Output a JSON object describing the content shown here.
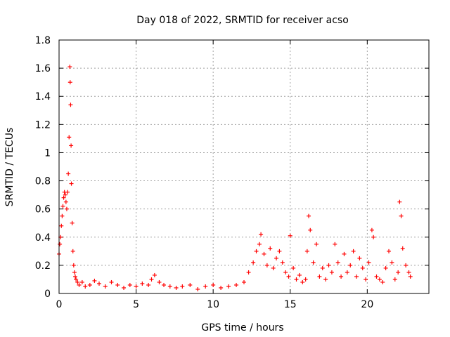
{
  "chart_data": {
    "type": "scatter",
    "title": "Day 018 of 2022, SRMTID for receiver acso",
    "xlabel": "GPS time / hours",
    "ylabel": "SRMTID / TECUs",
    "xlim": [
      0,
      24
    ],
    "ylim": [
      0,
      1.8
    ],
    "grid": true,
    "x_ticks": [
      0,
      5,
      10,
      15,
      20
    ],
    "x_tick_labels": [
      "0",
      "5",
      "10",
      "15",
      "20"
    ],
    "y_ticks": [
      0,
      0.2,
      0.4,
      0.6,
      0.8,
      1.0,
      1.2,
      1.4,
      1.6,
      1.8
    ],
    "y_tick_labels": [
      "0",
      "0.2",
      "0.4",
      "0.6",
      "0.8",
      "1",
      "1.2",
      "1.4",
      "1.6",
      "1.8"
    ],
    "marker": "+",
    "color": "#ff0000",
    "series": [
      {
        "name": "SRMTID",
        "x": [
          0.0,
          0.05,
          0.1,
          0.15,
          0.2,
          0.25,
          0.3,
          0.35,
          0.4,
          0.45,
          0.5,
          0.55,
          0.6,
          0.65,
          0.7,
          0.72,
          0.75,
          0.78,
          0.8,
          0.85,
          0.9,
          0.95,
          1.0,
          1.05,
          1.1,
          1.2,
          1.3,
          1.5,
          1.7,
          2.0,
          2.3,
          2.6,
          3.0,
          3.4,
          3.8,
          4.2,
          4.6,
          5.0,
          5.4,
          5.8,
          6.0,
          6.2,
          6.5,
          6.8,
          7.2,
          7.6,
          8.0,
          8.5,
          9.0,
          9.5,
          10.0,
          10.5,
          11.0,
          11.5,
          12.0,
          12.3,
          12.6,
          12.8,
          13.0,
          13.1,
          13.3,
          13.5,
          13.7,
          13.9,
          14.1,
          14.3,
          14.5,
          14.7,
          14.9,
          15.0,
          15.2,
          15.4,
          15.6,
          15.8,
          16.0,
          16.1,
          16.2,
          16.3,
          16.5,
          16.7,
          16.9,
          17.1,
          17.3,
          17.5,
          17.7,
          17.9,
          18.1,
          18.3,
          18.5,
          18.7,
          18.9,
          19.1,
          19.3,
          19.5,
          19.7,
          19.9,
          20.1,
          20.3,
          20.4,
          20.6,
          20.8,
          21.0,
          21.2,
          21.4,
          21.6,
          21.8,
          22.0,
          22.1,
          22.2,
          22.3,
          22.5,
          22.7,
          22.8
        ],
        "values": [
          0.28,
          0.35,
          0.4,
          0.48,
          0.55,
          0.62,
          0.68,
          0.72,
          0.7,
          0.65,
          0.6,
          0.72,
          0.85,
          1.11,
          1.61,
          1.5,
          1.34,
          1.05,
          0.78,
          0.5,
          0.3,
          0.2,
          0.15,
          0.12,
          0.1,
          0.08,
          0.06,
          0.08,
          0.05,
          0.06,
          0.09,
          0.07,
          0.05,
          0.08,
          0.06,
          0.04,
          0.06,
          0.05,
          0.07,
          0.06,
          0.1,
          0.13,
          0.08,
          0.06,
          0.05,
          0.04,
          0.05,
          0.06,
          0.03,
          0.05,
          0.06,
          0.04,
          0.05,
          0.06,
          0.08,
          0.15,
          0.22,
          0.3,
          0.35,
          0.42,
          0.28,
          0.2,
          0.32,
          0.18,
          0.25,
          0.3,
          0.22,
          0.15,
          0.12,
          0.41,
          0.18,
          0.1,
          0.13,
          0.08,
          0.1,
          0.3,
          0.55,
          0.45,
          0.22,
          0.35,
          0.12,
          0.18,
          0.1,
          0.2,
          0.15,
          0.35,
          0.22,
          0.12,
          0.28,
          0.15,
          0.2,
          0.3,
          0.12,
          0.25,
          0.18,
          0.1,
          0.22,
          0.45,
          0.4,
          0.12,
          0.1,
          0.08,
          0.18,
          0.3,
          0.22,
          0.1,
          0.15,
          0.65,
          0.55,
          0.32,
          0.2,
          0.15,
          0.12
        ]
      }
    ]
  }
}
